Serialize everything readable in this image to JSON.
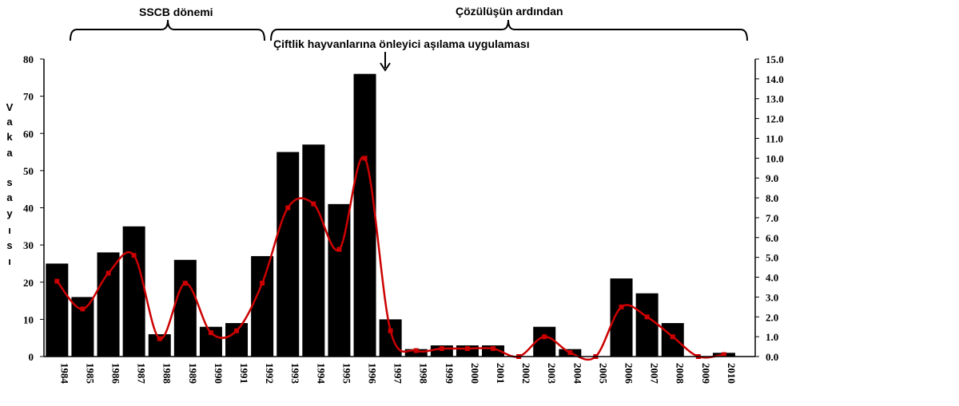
{
  "chart_data": {
    "type": "bar",
    "periods": {
      "ussr": "SSCB dönemi",
      "post": "Çözülüşün ardından"
    },
    "annotation": "Çiftlik hayvanlarına önleyici aşılama uygulaması",
    "ylabel": "Vaka sayısı",
    "ylabel_letters": [
      "V",
      "a",
      "k",
      "a",
      "s",
      "a",
      "y",
      "ı",
      "s",
      "ı"
    ],
    "categories": [
      "1984",
      "1985",
      "1986",
      "1987",
      "1988",
      "1989",
      "1990",
      "1991",
      "1992",
      "1993",
      "1994",
      "1995",
      "1996",
      "1997",
      "1998",
      "1999",
      "2000",
      "2001",
      "2002",
      "2003",
      "2004",
      "2005",
      "2006",
      "2007",
      "2008",
      "2009",
      "2010"
    ],
    "series": [
      {
        "type": "bar",
        "values": [
          25,
          16,
          28,
          35,
          6,
          26,
          8,
          9,
          27,
          55,
          57,
          41,
          76,
          10,
          2,
          3,
          3,
          3,
          0,
          8,
          2,
          0,
          21,
          17,
          9,
          0,
          1
        ]
      },
      {
        "type": "line",
        "values": [
          3.8,
          2.4,
          4.2,
          5.1,
          0.9,
          3.7,
          1.2,
          1.3,
          3.7,
          7.5,
          7.7,
          5.4,
          10.0,
          1.3,
          0.3,
          0.4,
          0.4,
          0.4,
          0.0,
          1.0,
          0.2,
          0.0,
          2.5,
          2.0,
          1.0,
          0.0,
          0.1
        ]
      }
    ],
    "ylim_left": [
      0,
      80
    ],
    "yticks_left": [
      "0",
      "10",
      "20",
      "30",
      "40",
      "50",
      "60",
      "70",
      "80"
    ],
    "ylim_right": [
      0,
      15
    ],
    "yticks_right": [
      "0.0",
      "1.0",
      "2.0",
      "3.0",
      "4.0",
      "5.0",
      "6.0",
      "7.0",
      "8.0",
      "9.0",
      "10.0",
      "11.0",
      "12.0",
      "13.0",
      "14.0",
      "15.0"
    ],
    "colors": {
      "bar": "#000000",
      "line": "#cc0000",
      "marker": "#cc0000"
    },
    "grid": false,
    "legend": "none"
  }
}
